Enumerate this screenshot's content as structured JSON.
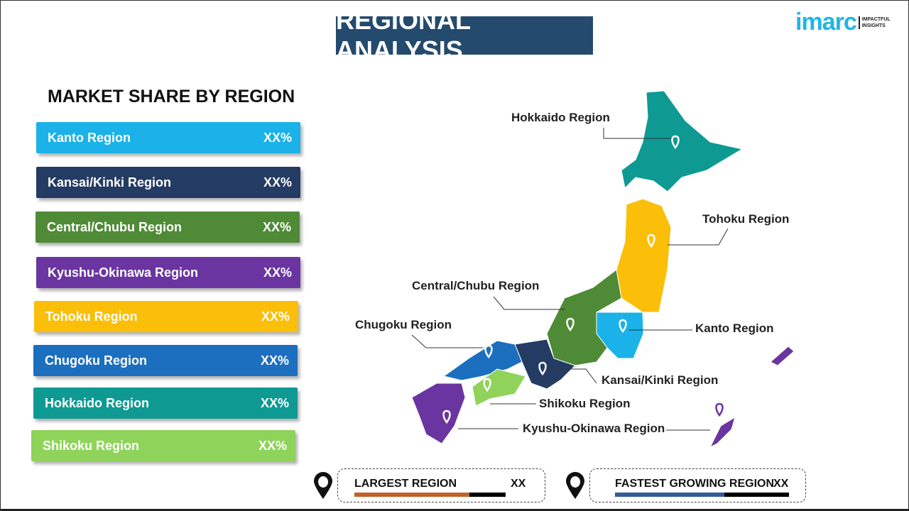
{
  "title": "REGIONAL ANALYSIS",
  "logo": {
    "brand": "imarc",
    "tagline1": "IMPACTFUL",
    "tagline2": "INSIGHTS"
  },
  "subtitle": "MARKET SHARE BY REGION",
  "regions": [
    {
      "name": "Kanto Region",
      "value": "XX%",
      "color": "#1ab2e8"
    },
    {
      "name": "Kansai/Kinki  Region",
      "value": "XX%",
      "color": "#243b64"
    },
    {
      "name": "Central/Chubu  Region",
      "value": "XX%",
      "color": "#4f8a36"
    },
    {
      "name": "Kyushu-Okinawa  Region",
      "value": "XX%",
      "color": "#6a35a0"
    },
    {
      "name": "Tohoku Region",
      "value": "XX%",
      "color": "#fbbf0a"
    },
    {
      "name": "Chugoku Region",
      "value": "XX%",
      "color": "#1c6fbf"
    },
    {
      "name": "Hokkaido Region",
      "value": "XX%",
      "color": "#0e9a93"
    },
    {
      "name": "Shikoku Region",
      "value": "XX%",
      "color": "#8fd35a"
    }
  ],
  "map_labels": {
    "hokkaido": "Hokkaido Region",
    "tohoku": "Tohoku Region",
    "central": "Central/Chubu Region",
    "chugoku": "Chugoku Region",
    "kanto": "Kanto Region",
    "kansai": "Kansai/Kinki Region",
    "shikoku": "Shikoku Region",
    "kyushu": "Kyushu-Okinawa Region"
  },
  "largest": {
    "label": "LARGEST REGION",
    "value": "XX",
    "color": "#c0622a",
    "fill_pct": 76
  },
  "fastest": {
    "label": "FASTEST GROWING REGION",
    "value": "XX",
    "color": "#325c97",
    "fill_pct": 63
  }
}
